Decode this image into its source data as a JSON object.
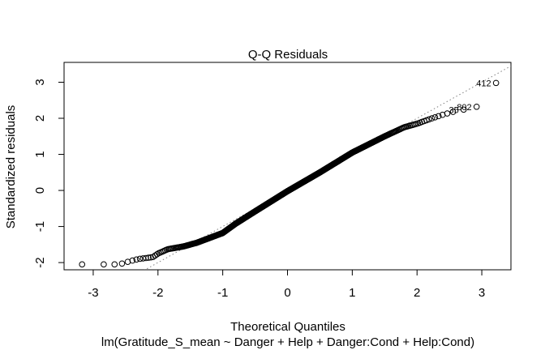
{
  "chart_data": {
    "type": "scatter",
    "title": "Q-Q Residuals",
    "xlabel": "Theoretical Quantiles",
    "subtitle": "lm(Gratitude_S_mean ~ Danger + Help + Danger:Cond + Help:Cond)",
    "ylabel": "Standardized residuals",
    "xlim": [
      -3.45,
      3.45
    ],
    "ylim": [
      -2.2,
      3.55
    ],
    "x_ticks": [
      -3,
      -2,
      -1,
      0,
      1,
      2,
      3
    ],
    "y_ticks": [
      -2,
      -1,
      0,
      1,
      2,
      3
    ],
    "reference_line": {
      "slope": 1.0,
      "intercept": 0.0,
      "style": "dotted",
      "color": "#808080"
    },
    "point_count": 660,
    "quantile_curve": [
      [
        -3.22,
        -2.05
      ],
      [
        -2.9,
        -2.05
      ],
      [
        -2.6,
        -2.05
      ],
      [
        -2.45,
        -1.97
      ],
      [
        -2.3,
        -1.9
      ],
      [
        -2.08,
        -1.85
      ],
      [
        -2.0,
        -1.75
      ],
      [
        -1.85,
        -1.63
      ],
      [
        -1.6,
        -1.55
      ],
      [
        -1.4,
        -1.45
      ],
      [
        -1.0,
        -1.18
      ],
      [
        -0.8,
        -0.92
      ],
      [
        -0.5,
        -0.58
      ],
      [
        0.0,
        -0.02
      ],
      [
        0.5,
        0.5
      ],
      [
        1.0,
        1.05
      ],
      [
        1.5,
        1.5
      ],
      [
        1.8,
        1.75
      ],
      [
        2.0,
        1.85
      ],
      [
        2.2,
        1.98
      ],
      [
        2.4,
        2.1
      ],
      [
        2.6,
        2.2
      ],
      [
        2.8,
        2.3
      ]
    ],
    "labeled_points": [
      {
        "label": "412",
        "x": 3.22,
        "y": 2.98
      },
      {
        "label": "802",
        "x": 2.92,
        "y": 2.32
      },
      {
        "label": "35",
        "x": 2.72,
        "y": 2.24
      }
    ]
  }
}
